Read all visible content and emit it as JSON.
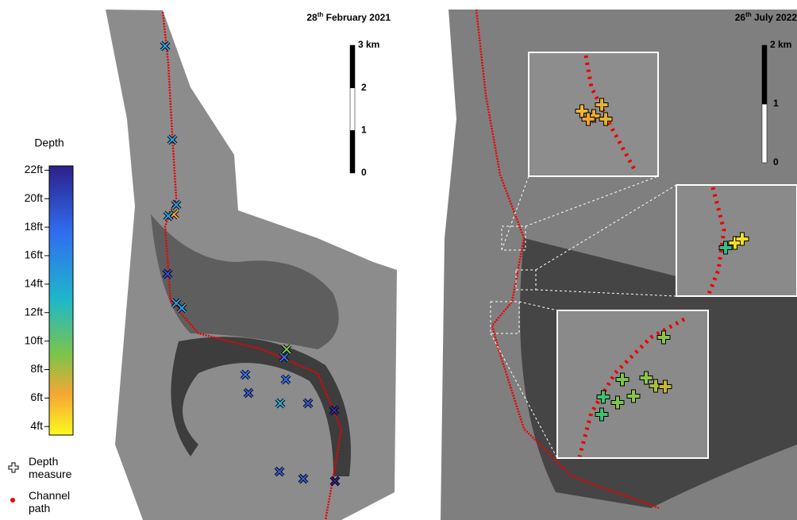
{
  "legend": {
    "colorbar": {
      "title": "Depth",
      "range": [
        3.4,
        22.3
      ],
      "ticks": [
        {
          "value": 22,
          "label": "22ft"
        },
        {
          "value": 20,
          "label": "20ft"
        },
        {
          "value": 18,
          "label": "18ft"
        },
        {
          "value": 16,
          "label": "16ft"
        },
        {
          "value": 14,
          "label": "14ft"
        },
        {
          "value": 12,
          "label": "12ft"
        },
        {
          "value": 10,
          "label": "10ft"
        },
        {
          "value": 8,
          "label": "8ft"
        },
        {
          "value": 6,
          "label": "6ft"
        },
        {
          "value": 4,
          "label": "4ft"
        }
      ]
    },
    "depth_measure": "Depth measure",
    "channel_path": "Channel path"
  },
  "panels": [
    {
      "date_day": "28",
      "date_suffix": "th",
      "date_rest": "February 2021",
      "scale": {
        "max": {
          "value": 3,
          "label": "3 km"
        },
        "ticks": [
          2,
          1,
          0
        ]
      }
    },
    {
      "date_day": "26",
      "date_suffix": "th",
      "date_rest": "July 2022",
      "scale": {
        "max": {
          "value": 2,
          "label": "2 km"
        },
        "ticks": [
          1,
          0
        ]
      }
    }
  ]
}
